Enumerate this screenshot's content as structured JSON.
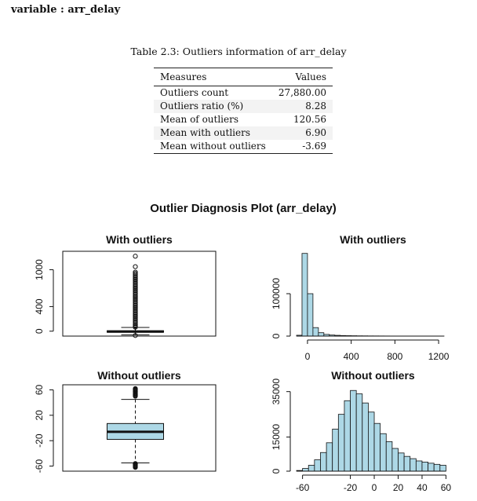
{
  "header": "variable : arr_delay",
  "table": {
    "caption": "Table 2.3: Outliers information of arr_delay",
    "columns": [
      "Measures",
      "Values"
    ],
    "rows": [
      [
        "Outliers count",
        "27,880.00"
      ],
      [
        "Outliers ratio (%)",
        "8.28"
      ],
      [
        "Mean of outliers",
        "120.56"
      ],
      [
        "Mean with outliers",
        "6.90"
      ],
      [
        "Mean without outliers",
        "-3.69"
      ]
    ]
  },
  "figure_title": "Outlier Diagnosis Plot (arr_delay)",
  "chart_data": [
    {
      "type": "box",
      "title": "With outliers",
      "ylim": [
        -80,
        1300
      ],
      "yticks": [
        0,
        400,
        1000
      ],
      "stats": {
        "lower_whisker": -60,
        "q1": -17,
        "median": -6,
        "q3": 7,
        "upper_whisker": 60
      },
      "outliers": [
        1220,
        1050,
        960,
        940,
        920,
        900,
        880,
        860,
        840,
        820,
        800,
        780,
        760,
        740,
        720,
        700,
        680,
        660,
        640,
        620,
        600,
        580,
        560,
        540,
        520,
        500,
        480,
        460,
        440,
        420,
        400,
        380,
        360,
        340,
        320,
        300,
        280,
        260,
        240,
        220,
        200,
        180,
        160,
        140,
        120,
        100,
        80,
        65,
        -70
      ],
      "fill": "#ffffff"
    },
    {
      "type": "histogram",
      "title": "With outliers",
      "bin_width": 50,
      "bin_start": -100,
      "xlim": [
        -100,
        1300
      ],
      "xticks": [
        0,
        400,
        800,
        1200
      ],
      "ylim": [
        0,
        200000
      ],
      "yticks": [
        0,
        100000
      ],
      "counts": [
        2000,
        195000,
        100000,
        20000,
        8000,
        4000,
        2500,
        1800,
        1300,
        1000,
        800,
        600,
        500,
        400,
        350,
        300,
        250,
        200,
        170,
        150,
        130,
        110,
        100,
        90,
        80,
        70,
        60
      ],
      "fill": "#add8e6"
    },
    {
      "type": "box",
      "title": "Without outliers",
      "ylim": [
        -68,
        68
      ],
      "yticks": [
        -60,
        -20,
        20,
        60
      ],
      "stats": {
        "lower_whisker": -55,
        "q1": -18,
        "median": -6,
        "q3": 7,
        "upper_whisker": 45
      },
      "outliers": [
        62,
        61,
        60,
        59,
        58,
        57,
        56,
        55,
        54,
        53,
        52,
        51,
        50,
        -56,
        -57,
        -58,
        -59,
        -60,
        -61,
        -62
      ],
      "fill": "#add8e6"
    },
    {
      "type": "histogram",
      "title": "Without outliers",
      "bin_width": 5,
      "bin_start": -65,
      "xlim": [
        -65,
        63
      ],
      "xticks": [
        -60,
        -20,
        0,
        20,
        40,
        60
      ],
      "ylim": [
        0,
        38000
      ],
      "yticks": [
        0,
        15000,
        35000
      ],
      "counts": [
        300,
        1200,
        2600,
        5000,
        8200,
        12500,
        18500,
        25000,
        31000,
        35500,
        34000,
        30000,
        26000,
        21000,
        16500,
        13000,
        10000,
        8000,
        6500,
        5500,
        4500,
        4000,
        3500,
        3000,
        2600
      ],
      "fill": "#add8e6"
    }
  ]
}
